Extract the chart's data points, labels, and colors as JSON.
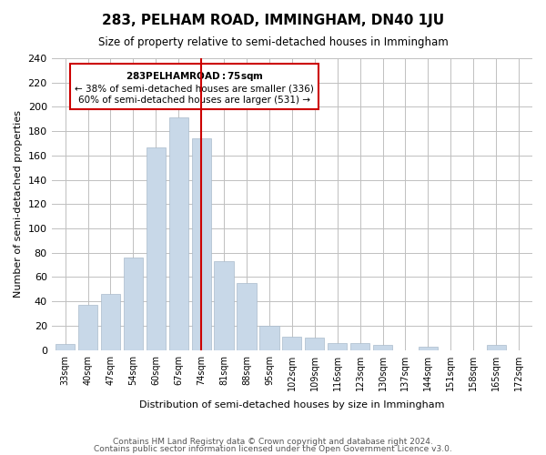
{
  "title": "283, PELHAM ROAD, IMMINGHAM, DN40 1JU",
  "subtitle": "Size of property relative to semi-detached houses in Immingham",
  "xlabel": "Distribution of semi-detached houses by size in Immingham",
  "ylabel": "Number of semi-detached properties",
  "footer_line1": "Contains HM Land Registry data © Crown copyright and database right 2024.",
  "footer_line2": "Contains public sector information licensed under the Open Government Licence v3.0.",
  "bar_labels": [
    "33sqm",
    "40sqm",
    "47sqm",
    "54sqm",
    "60sqm",
    "67sqm",
    "74sqm",
    "81sqm",
    "88sqm",
    "95sqm",
    "102sqm",
    "109sqm",
    "116sqm",
    "123sqm",
    "130sqm",
    "137sqm",
    "144sqm",
    "151sqm",
    "158sqm",
    "165sqm",
    "172sqm"
  ],
  "bar_values": [
    5,
    37,
    46,
    76,
    167,
    191,
    174,
    73,
    55,
    20,
    11,
    10,
    6,
    6,
    4,
    0,
    3,
    0,
    0,
    4,
    0
  ],
  "bar_color": "#c8d8e8",
  "highlight_bar_index": 6,
  "highlight_bar_color": "#c8d8e8",
  "vline_x": 6,
  "vline_color": "#cc0000",
  "annotation_title": "283 PELHAM ROAD: 75sqm",
  "annotation_line1": "← 38% of semi-detached houses are smaller (336)",
  "annotation_line2": "60% of semi-detached houses are larger (531) →",
  "annotation_box_color": "#ffffff",
  "annotation_box_edge": "#cc0000",
  "ylim": [
    0,
    240
  ],
  "yticks": [
    0,
    20,
    40,
    60,
    80,
    100,
    120,
    140,
    160,
    180,
    200,
    220,
    240
  ],
  "background_color": "#ffffff",
  "grid_color": "#c0c0c0"
}
